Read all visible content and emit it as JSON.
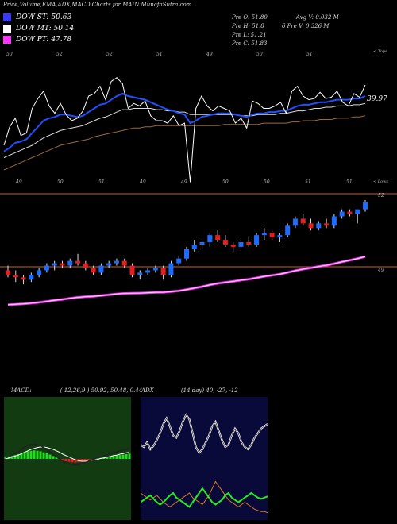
{
  "header": {
    "title": "Price,Volume,EMA,ADX,MACD Charts for MAIN  MunafaSutra.com"
  },
  "legend": [
    {
      "label": "DOW ST: 50.63",
      "color": "#3a3aff"
    },
    {
      "label": "DOW MT: 50.14",
      "color": "#ffffff"
    },
    {
      "label": "DOW PT: 47.78",
      "color": "#ff33ff"
    }
  ],
  "stats": {
    "col1": [
      "Pre O: 51.80",
      "Pre H: 51.8",
      "Pre L: 51.21",
      "Pre C: 51.83"
    ],
    "col2": [
      "Avg V: 0.032  M",
      "6    Pre V: 0.326  M"
    ]
  },
  "colors": {
    "up": "#1e6cff",
    "down": "#e61e1e",
    "ema_fast": "#1e50ff",
    "ema_mid": "#ffffff",
    "ema_slow": "#9a6a3a",
    "ema_long": "#ff33ff",
    "orange_line": "#c8621e",
    "macd_bg": "#123b12",
    "adx_bg": "#0a0a3a"
  },
  "chart_data": [
    {
      "type": "line",
      "name": "volume-overlay",
      "top_labels": [
        "50",
        "52",
        "52",
        "51",
        "49",
        "50",
        "51"
      ],
      "top_right_label": "< Tops",
      "bottom_labels": [
        "49",
        "50",
        "51",
        "49",
        "49",
        "50",
        "50",
        "51",
        "51"
      ],
      "bottom_right_label": "< Lows",
      "last_value_label": "39.97",
      "volume": [
        40,
        55,
        62,
        48,
        50,
        70,
        78,
        84,
        72,
        66,
        74,
        65,
        60,
        62,
        68,
        80,
        82,
        88,
        77,
        92,
        95,
        90,
        70,
        74,
        72,
        76,
        64,
        60,
        60,
        58,
        64,
        56,
        58,
        10,
        70,
        80,
        72,
        68,
        72,
        70,
        68,
        58,
        62,
        54,
        76,
        74,
        70,
        70,
        72,
        75,
        66,
        84,
        88,
        80,
        77,
        78,
        83,
        78,
        79,
        84,
        75,
        72,
        82,
        79,
        89
      ],
      "ema_volume": [
        35,
        38,
        42,
        43,
        45,
        50,
        55,
        60,
        62,
        63,
        65,
        65,
        64,
        63,
        64,
        67,
        70,
        73,
        74,
        77,
        80,
        82,
        80,
        79,
        78,
        77,
        75,
        73,
        71,
        69,
        68,
        66,
        65,
        58,
        60,
        63,
        64,
        65,
        66,
        66,
        66,
        65,
        64,
        63,
        65,
        66,
        66,
        67,
        67,
        68,
        68,
        70,
        72,
        73,
        73,
        74,
        75,
        75,
        76,
        77,
        77,
        77,
        78,
        78,
        80
      ],
      "ema_mid": [
        30,
        32,
        34,
        36,
        38,
        40,
        43,
        46,
        48,
        50,
        52,
        53,
        54,
        55,
        56,
        58,
        60,
        62,
        63,
        65,
        67,
        69,
        69,
        70,
        70,
        70,
        70,
        69,
        69,
        68,
        68,
        67,
        67,
        65,
        65,
        65,
        65,
        65,
        65,
        65,
        65,
        65,
        64,
        64,
        64,
        65,
        65,
        65,
        65,
        66,
        66,
        67,
        68,
        68,
        69,
        70,
        70,
        71,
        71,
        72,
        72,
        72,
        73,
        73,
        74
      ],
      "ema_slow": [
        20,
        22,
        24,
        26,
        28,
        30,
        32,
        34,
        36,
        38,
        40,
        41,
        42,
        43,
        44,
        45,
        47,
        48,
        49,
        50,
        51,
        52,
        53,
        54,
        54,
        55,
        55,
        56,
        56,
        56,
        56,
        56,
        56,
        56,
        56,
        56,
        56,
        56,
        56,
        57,
        57,
        57,
        57,
        57,
        57,
        57,
        58,
        58,
        58,
        58,
        58,
        59,
        59,
        60,
        60,
        60,
        61,
        61,
        61,
        62,
        62,
        62,
        63,
        63,
        64
      ],
      "ylim": [
        0,
        100
      ]
    },
    {
      "type": "candlestick",
      "name": "price",
      "right_labels": [
        "52",
        "49"
      ],
      "ylim": [
        48.2,
        52.6
      ],
      "candles": [
        [
          49.2,
          49.4,
          48.9,
          49.0
        ],
        [
          49.0,
          49.2,
          48.7,
          48.9
        ],
        [
          48.9,
          49.0,
          48.6,
          48.8
        ],
        [
          48.8,
          49.1,
          48.7,
          49.0
        ],
        [
          49.0,
          49.3,
          48.9,
          49.2
        ],
        [
          49.2,
          49.5,
          49.1,
          49.4
        ],
        [
          49.4,
          49.6,
          49.2,
          49.5
        ],
        [
          49.5,
          49.6,
          49.3,
          49.4
        ],
        [
          49.4,
          49.7,
          49.3,
          49.6
        ],
        [
          49.6,
          49.9,
          49.4,
          49.5
        ],
        [
          49.5,
          49.6,
          49.2,
          49.3
        ],
        [
          49.3,
          49.4,
          49.0,
          49.1
        ],
        [
          49.1,
          49.5,
          49.0,
          49.4
        ],
        [
          49.4,
          49.6,
          49.3,
          49.5
        ],
        [
          49.5,
          49.7,
          49.4,
          49.6
        ],
        [
          49.6,
          49.7,
          49.3,
          49.4
        ],
        [
          49.4,
          49.5,
          48.9,
          49.0
        ],
        [
          49.0,
          49.2,
          48.8,
          49.1
        ],
        [
          49.1,
          49.3,
          49.0,
          49.2
        ],
        [
          49.2,
          49.4,
          49.1,
          49.3
        ],
        [
          49.3,
          49.4,
          48.8,
          49.0
        ],
        [
          49.0,
          49.6,
          48.9,
          49.5
        ],
        [
          49.5,
          49.8,
          49.4,
          49.7
        ],
        [
          49.7,
          50.2,
          49.6,
          50.1
        ],
        [
          50.1,
          50.5,
          50.0,
          50.3
        ],
        [
          50.3,
          50.5,
          50.1,
          50.4
        ],
        [
          50.4,
          50.8,
          50.2,
          50.7
        ],
        [
          50.7,
          50.9,
          50.4,
          50.5
        ],
        [
          50.5,
          50.7,
          50.2,
          50.3
        ],
        [
          50.3,
          50.4,
          50.0,
          50.2
        ],
        [
          50.2,
          50.5,
          50.1,
          50.4
        ],
        [
          50.4,
          50.6,
          50.2,
          50.3
        ],
        [
          50.3,
          50.8,
          50.2,
          50.7
        ],
        [
          50.7,
          51.0,
          50.5,
          50.8
        ],
        [
          50.8,
          50.9,
          50.5,
          50.6
        ],
        [
          50.6,
          50.8,
          50.4,
          50.7
        ],
        [
          50.7,
          51.2,
          50.6,
          51.1
        ],
        [
          51.1,
          51.5,
          51.0,
          51.4
        ],
        [
          51.4,
          51.6,
          51.1,
          51.2
        ],
        [
          51.2,
          51.4,
          50.9,
          51.0
        ],
        [
          51.0,
          51.3,
          50.9,
          51.2
        ],
        [
          51.2,
          51.4,
          51.0,
          51.1
        ],
        [
          51.1,
          51.6,
          51.0,
          51.5
        ],
        [
          51.5,
          51.8,
          51.4,
          51.7
        ],
        [
          51.7,
          51.8,
          51.5,
          51.6
        ],
        [
          51.6,
          51.8,
          51.2,
          51.8
        ],
        [
          51.8,
          52.2,
          51.7,
          52.1
        ]
      ]
    },
    {
      "type": "bar",
      "name": "macd",
      "label": "MACD:",
      "values_text": "( 12,26,9 ) 50.92, 50.48, 0.44",
      "ylim": [
        -1,
        1
      ],
      "histogram": [
        0.05,
        0.06,
        0.07,
        0.08,
        0.1,
        0.12,
        0.14,
        0.16,
        0.17,
        0.18,
        0.17,
        0.16,
        0.14,
        0.12,
        0.09,
        0.06,
        0.03,
        0.0,
        -0.03,
        -0.05,
        -0.06,
        -0.07,
        -0.08,
        -0.07,
        -0.06,
        -0.05,
        -0.03,
        -0.02,
        -0.01,
        0.01,
        0.02,
        0.03,
        0.04,
        0.05,
        0.06,
        0.07,
        0.08,
        0.09,
        0.1,
        0.11
      ],
      "macd": [
        0.02,
        0.05,
        0.08,
        0.12,
        0.15,
        0.2,
        0.25,
        0.28,
        0.3,
        0.31,
        0.3,
        0.28,
        0.24,
        0.2,
        0.15,
        0.1,
        0.05,
        0.0,
        -0.05,
        -0.08,
        -0.1,
        -0.12,
        -0.13,
        -0.12,
        -0.1,
        -0.08,
        -0.05,
        -0.02,
        0.0,
        0.03,
        0.05,
        0.07,
        0.09,
        0.11,
        0.13,
        0.15,
        0.17,
        0.19,
        0.2,
        0.22
      ],
      "signal": [
        0.0,
        0.02,
        0.04,
        0.06,
        0.08,
        0.11,
        0.14,
        0.17,
        0.2,
        0.22,
        0.24,
        0.25,
        0.25,
        0.24,
        0.22,
        0.2,
        0.17,
        0.14,
        0.1,
        0.07,
        0.04,
        0.01,
        -0.02,
        -0.04,
        -0.05,
        -0.05,
        -0.04,
        -0.03,
        -0.02,
        -0.01,
        0.01,
        0.02,
        0.04,
        0.05,
        0.07,
        0.08,
        0.1,
        0.11,
        0.13,
        0.14
      ]
    },
    {
      "type": "line",
      "name": "adx",
      "label": "ADX",
      "values_text": "(14 day) 40,  -27,  -12",
      "ylim": [
        0,
        100
      ],
      "adx": [
        62,
        60,
        64,
        58,
        61,
        66,
        72,
        80,
        85,
        78,
        70,
        68,
        74,
        82,
        88,
        84,
        72,
        60,
        55,
        58,
        64,
        70,
        78,
        82,
        74,
        66,
        60,
        62,
        70,
        76,
        72,
        64,
        60,
        58,
        62,
        68,
        72,
        76,
        78,
        80
      ],
      "plus_di": [
        12,
        14,
        16,
        18,
        15,
        12,
        10,
        12,
        15,
        18,
        20,
        16,
        14,
        12,
        10,
        8,
        12,
        16,
        20,
        24,
        20,
        16,
        12,
        10,
        12,
        14,
        18,
        20,
        16,
        14,
        12,
        14,
        16,
        18,
        20,
        18,
        16,
        15,
        16,
        17
      ],
      "minus_di": [
        20,
        18,
        16,
        14,
        16,
        18,
        15,
        12,
        10,
        8,
        10,
        12,
        14,
        16,
        18,
        20,
        16,
        14,
        12,
        10,
        14,
        18,
        24,
        30,
        26,
        22,
        18,
        14,
        12,
        10,
        8,
        10,
        12,
        10,
        8,
        6,
        5,
        4,
        4,
        3
      ]
    }
  ]
}
